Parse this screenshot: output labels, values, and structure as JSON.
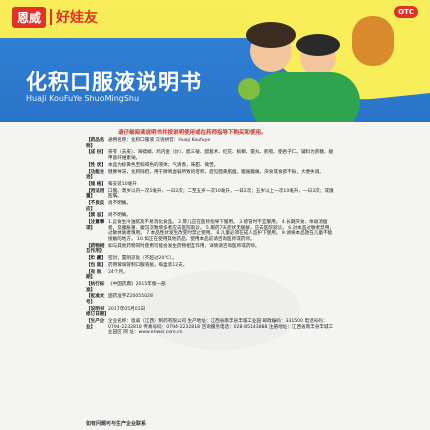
{
  "brand": {
    "name1": "恩威",
    "name2": "好娃友",
    "otc": "OTC"
  },
  "header": {
    "title": "化积口服液说明书",
    "pinyin": "HuaJi KouFuYe ShuoMingShu"
  },
  "notice": "请仔细阅读说明书并按说明使用或在药师指导下购买和使用。",
  "rows": [
    {
      "k": "【药品名称】",
      "v": "通用名称：化积口服液 汉语拼音：Huaji Koufuye"
    },
    {
      "k": "【成    份】",
      "v": "茯苓（去皮）、海螵蛸、鸡内金（炒）、醋三棱、醋莪术、红花、槟榔、雷丸、鹤虱、使君子仁。辅料为蔗糖、羧甲基纤维素钠。"
    },
    {
      "k": "【性    状】",
      "v": "本品为棕黄色至棕褐色的液体；气清香，味甜、微苦。"
    },
    {
      "k": "【功能主治】",
      "v": "健脾导滞，化积除疳。用于脾胃虚弱所致的疳积，症见面黄肌瘦，腹胀腹痛，厌食或食欲不振，大便失调。"
    },
    {
      "k": "【规    格】",
      "v": "每支装10毫升"
    },
    {
      "k": "【用法用量】",
      "v": "口服。周岁以内一次5毫升，一日2次；二至五岁一次10毫升，一日2次；五岁以上一次10毫升，一日3次；或遵医嘱。"
    },
    {
      "k": "【不良反应】",
      "v": "尚不明确。"
    },
    {
      "k": "【禁    忌】",
      "v": "尚不明确。"
    },
    {
      "k": "【注意事项】",
      "v": "1.忌食生冷油腻及不易消化食品。 2.婴儿应在医师指导下服用。 3.感冒时不宜服用。 4.长期厌食，体弱消瘦者，及腹胀重、腹泻次数增多者应去医院就诊。 5.服药7天症状无缓解，应去医院就诊。 6.对本品过敏者禁用，过敏体质者慎用。 7.本品性状发生改变时禁止使用。 8.儿童必须在成人监护下使用。 9.请将本品放在儿童不能接触的地方。 10.如正在使用其他药品，使用本品前请咨询医师或药师。"
    },
    {
      "k": "【药物相互作用】",
      "v": "如与其他药物同时使用可能会发生药物相互作用，详情请咨询医师或药师。"
    },
    {
      "k": "【贮    藏】",
      "v": "密封，置阴凉处（不超过20℃）。"
    },
    {
      "k": "【包    装】",
      "v": "药用玻璃管制口服液瓶，每盒装12支。"
    },
    {
      "k": "【有 效 期】",
      "v": "24个月。"
    },
    {
      "k": "【执行标准】",
      "v": "《中国药典》2015年版一部"
    },
    {
      "k": "【批准文号】",
      "v": "国药准字Z20055028"
    },
    {
      "k": "【说明书修订日期】",
      "v": "2017年05月01日"
    },
    {
      "k": "【生产企业】",
      "v": "企业名称：恩威（江西）制药有限公司 生产地址：江西省南丰县丰城工业园 邮政编码：331500 电话号码：0794-2232818 传真号码：0794-2232818 咨询服务电话：028-85143888 注册地址：江西省南丰县丰城工业园区 网    址：www.enwei.com.cn"
    }
  ],
  "footer": "如有问题可与生产企业联系"
}
